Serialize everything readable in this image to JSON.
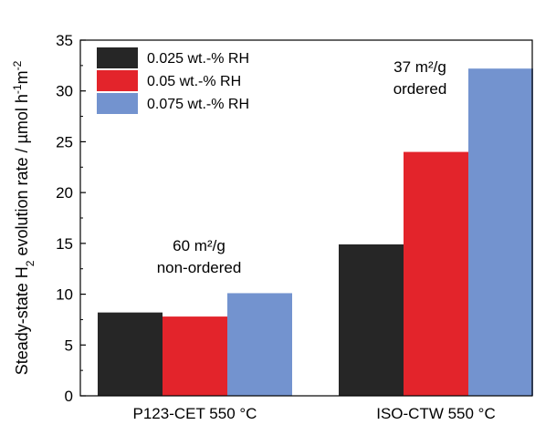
{
  "chart_data": {
    "type": "bar",
    "ylabel": {
      "prefix": "Steady-state H",
      "sub1": "2",
      "middle": " evolution rate / µmol h",
      "sup1": "-1",
      "space": "m",
      "sup2": "-2"
    },
    "ylim": [
      0,
      35
    ],
    "yticks": [
      "0",
      "5",
      "10",
      "15",
      "20",
      "25",
      "30",
      "35"
    ],
    "categories": [
      "P123-CET 550 °C",
      "ISO-CTW 550 °C"
    ],
    "series": [
      {
        "name": "0.025 wt.-% RH",
        "color": "#262626",
        "values": [
          8.2,
          14.9
        ]
      },
      {
        "name": "0.05 wt.-% RH",
        "color": "#e3242b",
        "values": [
          7.8,
          24.0
        ]
      },
      {
        "name": "0.075 wt.-% RH",
        "color": "#7393cf",
        "values": [
          10.1,
          32.2
        ]
      }
    ],
    "annotations": [
      {
        "category": "P123-CET 550 °C",
        "lines": [
          "60 m²/g",
          "non-ordered"
        ]
      },
      {
        "category": "ISO-CTW 550 °C",
        "lines": [
          "37 m²/g",
          "ordered"
        ]
      }
    ],
    "legend_position": "top-left",
    "grid": false
  }
}
